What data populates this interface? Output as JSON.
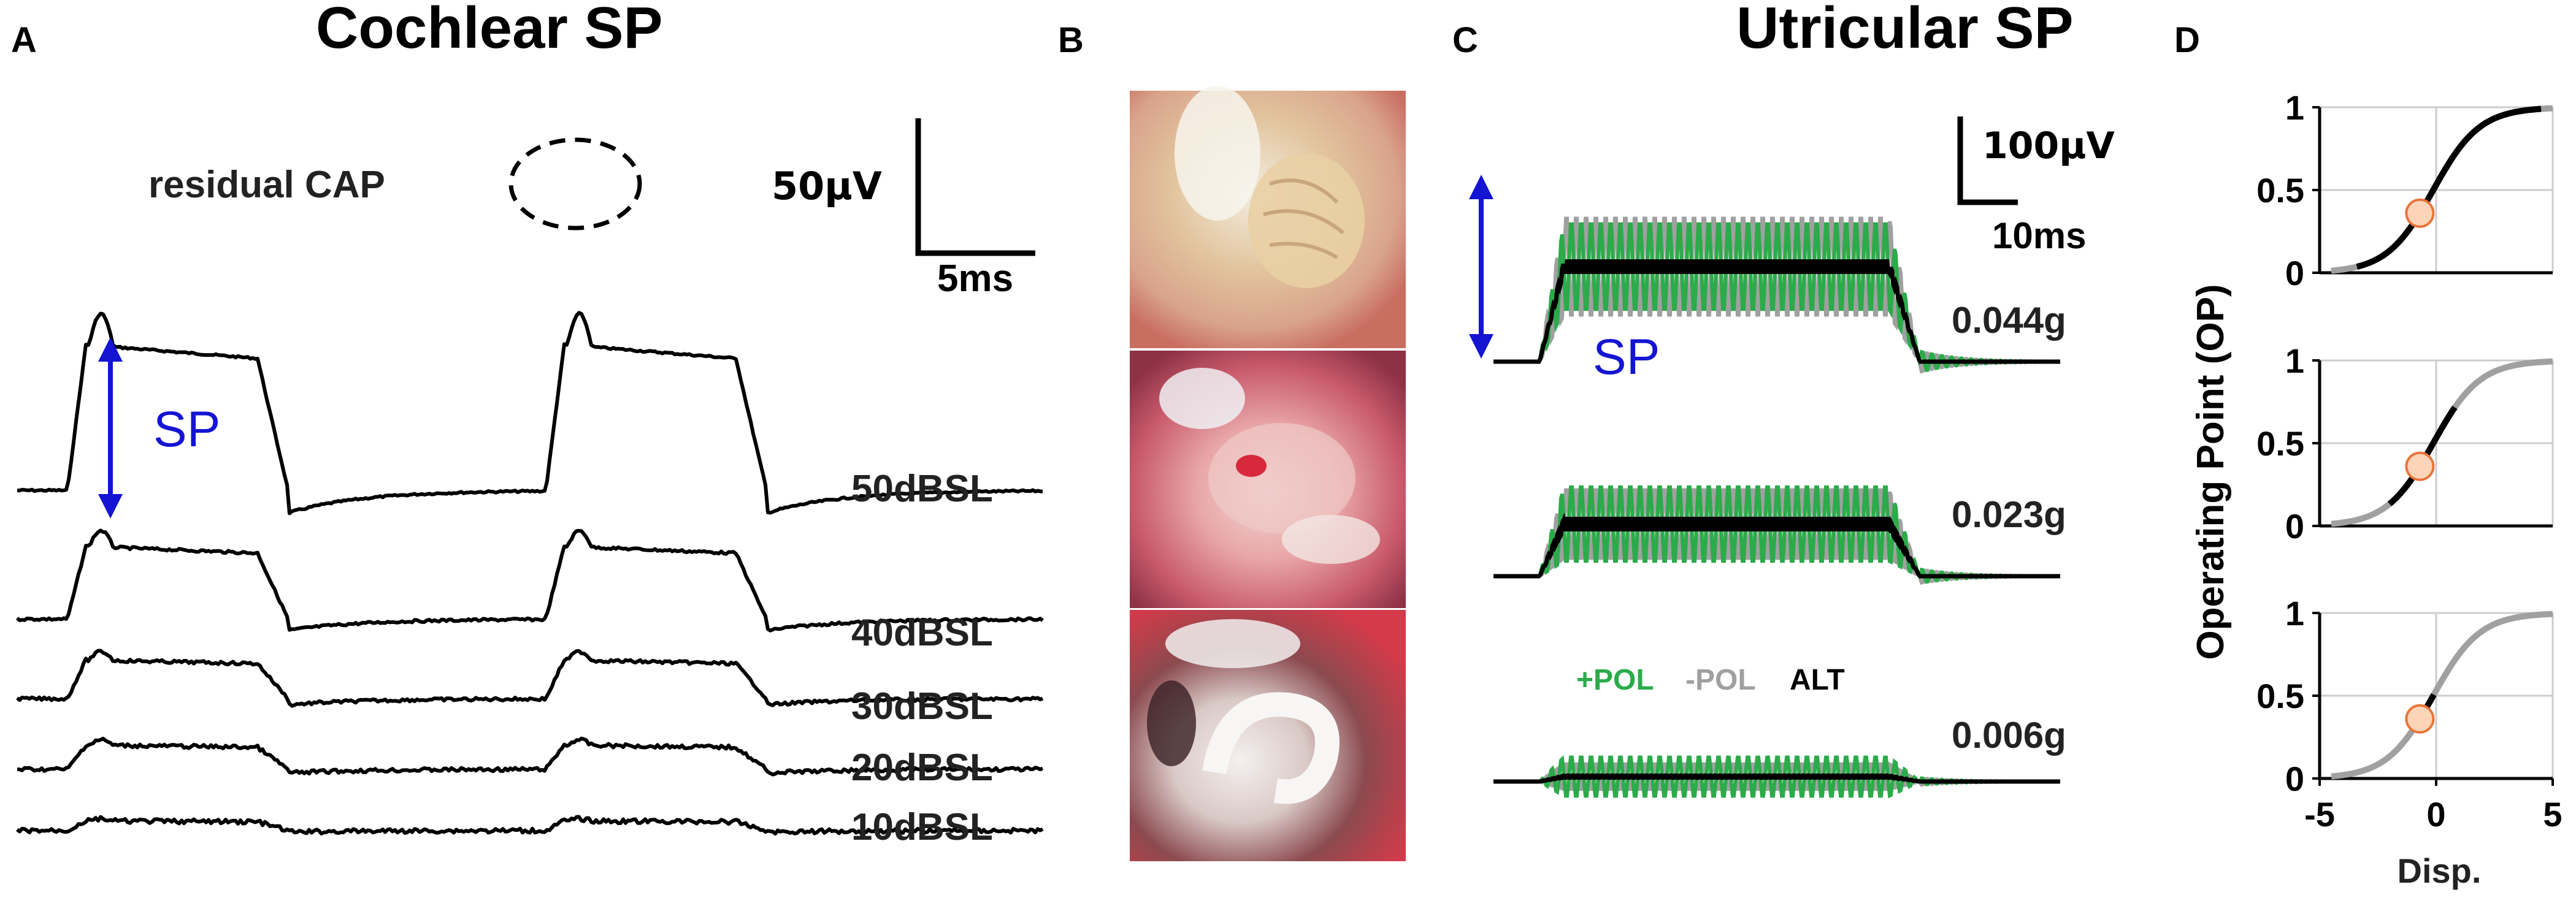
{
  "panel_letters": {
    "a": "A",
    "b": "B",
    "c": "C",
    "d": "D"
  },
  "panel_a": {
    "title": "Cochlear SP",
    "annotation_cap": "residual CAP",
    "sp_label": "SP",
    "scale_amplitude": "50μV",
    "scale_time": "5ms",
    "trace_labels": [
      "50dBSL",
      "40dBSL",
      "30dBSL",
      "20dBSL",
      "10dBSL"
    ]
  },
  "panel_c": {
    "title": "Utricular SP",
    "sp_label": "SP",
    "scale_amplitude": "100μV",
    "scale_time": "10ms",
    "trace_labels": [
      "0.044g",
      "0.023g",
      "0.006g"
    ],
    "legend": [
      {
        "label": "+POL",
        "color": "#2cab4a"
      },
      {
        "label": "-POL",
        "color": "#a0a0a0"
      },
      {
        "label": "ALT",
        "color": "#000000"
      }
    ]
  },
  "panel_d": {
    "ylabel": "Operating Point (OP)",
    "xlabel": "Disp.",
    "x_ticks": [
      "-5",
      "0",
      "5"
    ],
    "y_ticks": [
      "0",
      "0.5",
      "1"
    ]
  },
  "colors": {
    "trace": "#000000",
    "sp_arrow": "#1414d2",
    "pos_pol": "#2cab4a",
    "neg_pol": "#a0a0a0",
    "op_marker_fill": "#fcd4b8",
    "op_marker_stroke": "#e8753a",
    "grid": "#cccccc",
    "curve_inactive": "#a0a0a0",
    "curve_active": "#000000"
  },
  "chart_data": [
    {
      "type": "line",
      "panel": "A",
      "title": "Cochlear SP",
      "series": [
        {
          "name": "50dBSL",
          "sp_amplitude_uV": 60
        },
        {
          "name": "40dBSL",
          "sp_amplitude_uV": 30
        },
        {
          "name": "30dBSL",
          "sp_amplitude_uV": 16
        },
        {
          "name": "20dBSL",
          "sp_amplitude_uV": 10
        },
        {
          "name": "10dBSL",
          "sp_amplitude_uV": 4
        }
      ]
    },
    {
      "type": "line",
      "panel": "C",
      "title": "Utricular SP",
      "series": [
        {
          "name": "0.044g",
          "alt_sp_uV": 155,
          "pos_pol_peak_uV": 230,
          "neg_pol_peak_uV": 240
        },
        {
          "name": "0.023g",
          "alt_sp_uV": 85,
          "pos_pol_peak_uV": 150,
          "neg_pol_peak_uV": 145
        },
        {
          "name": "0.006g",
          "alt_sp_uV": 8,
          "pos_pol_peak_uV": 42,
          "neg_pol_peak_uV": 30
        }
      ]
    },
    {
      "type": "line",
      "panel": "D",
      "xlabel": "Disp.",
      "ylabel": "Operating Point (OP)",
      "xlim": [
        -5,
        5
      ],
      "ylim": [
        0,
        1
      ],
      "grid": true,
      "subplots": [
        {
          "operating_point": {
            "x": -0.7,
            "y": 0.36
          },
          "active_range": [
            -3.5,
            4.6
          ]
        },
        {
          "operating_point": {
            "x": -0.7,
            "y": 0.36
          },
          "active_range": [
            -2.0,
            0.9
          ]
        },
        {
          "operating_point": {
            "x": -0.7,
            "y": 0.36
          },
          "active_range": [
            -1.0,
            0.0
          ]
        }
      ]
    }
  ]
}
